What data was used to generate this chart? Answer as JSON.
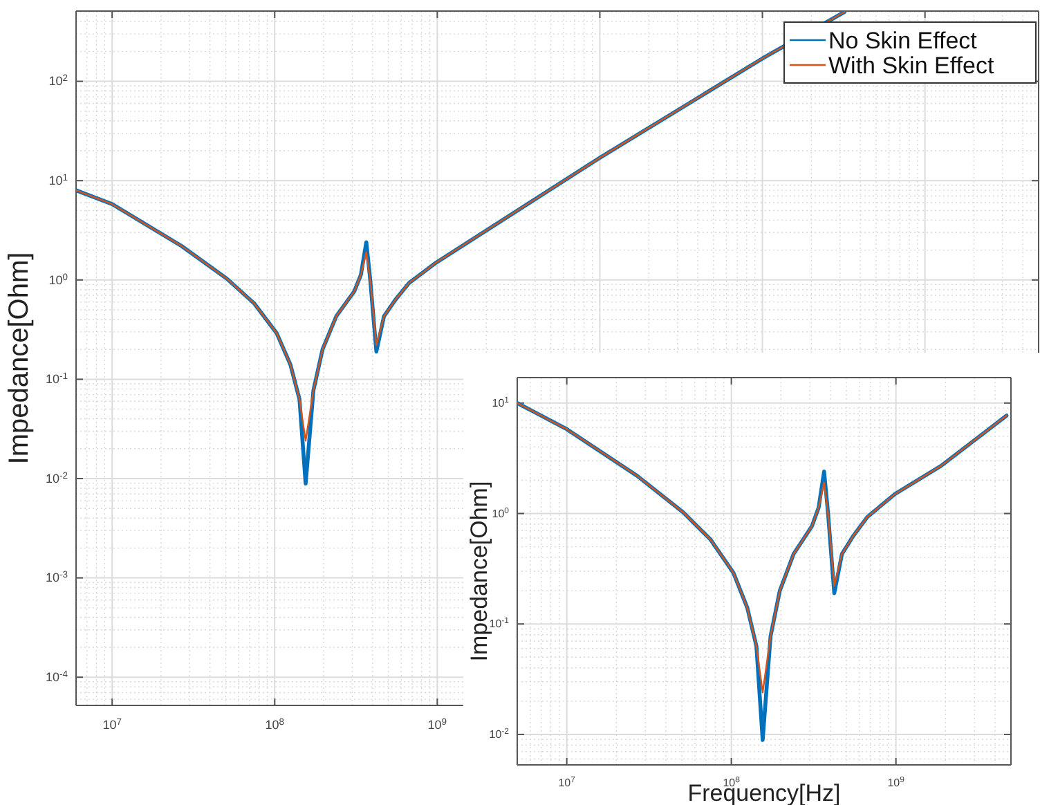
{
  "chart_data": [
    {
      "type": "line",
      "ylabel": "Impedance[Ohm]",
      "log": "xy",
      "grid": true,
      "legend": "top right",
      "line_style": "solid",
      "xlim": [
        6000000,
        5000000000000
      ],
      "ylim": [
        5.2e-05,
        510
      ],
      "xticks": [
        {
          "value": 10000000,
          "label": "10$^{7}$"
        },
        {
          "value": 100000000,
          "label": "10$^{8}$"
        },
        {
          "value": 1000000000,
          "label": "10$^{9}$"
        },
        {
          "value": 10000000000,
          "label": null
        },
        {
          "value": 100000000000,
          "label": null
        },
        {
          "value": 1000000000000,
          "label": null
        }
      ],
      "yticks": [
        {
          "value": 0.0001,
          "label": "10$^{-4}$"
        },
        {
          "value": 0.001,
          "label": "10$^{-3}$"
        },
        {
          "value": 0.01,
          "label": "10$^{-2}$"
        },
        {
          "value": 0.1,
          "label": "10$^{-1}$"
        },
        {
          "value": 1,
          "label": "10$^{0}$"
        },
        {
          "value": 10,
          "label": "10$^{1}$"
        },
        {
          "value": 100,
          "label": "10$^{2}$"
        }
      ],
      "x": [
        6000000,
        10000000,
        26700000,
        50800000,
        74800000,
        103000000,
        125000000,
        142000000,
        155000000,
        173000000,
        197000000,
        239000000,
        309000000,
        339000000,
        366000000,
        387000000,
        422000000,
        470000000,
        552000000,
        670000000,
        986000000,
        10000000000,
        100000000000,
        320000000000
      ],
      "series": [
        {
          "name": "No Skin Effect",
          "color": "#0072bd",
          "values": [
            8,
            5.8,
            2.2,
            1.03,
            0.58,
            0.29,
            0.14,
            0.063,
            0.0089,
            0.077,
            0.2,
            0.43,
            0.77,
            1.13,
            2.4,
            1.0,
            0.19,
            0.43,
            0.63,
            0.93,
            1.5,
            17,
            170,
            500
          ]
        },
        {
          "name": "With Skin Effect",
          "color": "#d95319",
          "values": [
            8,
            5.8,
            2.2,
            1.03,
            0.58,
            0.29,
            0.14,
            0.063,
            0.024,
            0.077,
            0.2,
            0.43,
            0.77,
            1.13,
            1.9,
            1.0,
            0.22,
            0.43,
            0.63,
            0.93,
            1.5,
            17,
            170,
            500
          ]
        }
      ]
    },
    {
      "type": "line",
      "xlabel": "Frequency[Hz]",
      "ylabel": "Impedance[Ohm]",
      "log": "xy",
      "grid": true,
      "line_style": "solid",
      "xlim": [
        5000000,
        5000000000
      ],
      "ylim": [
        0.0053,
        17
      ],
      "xticks": [
        {
          "value": 10000000,
          "label": "10$^{7}$"
        },
        {
          "value": 100000000,
          "label": "10$^{8}$"
        },
        {
          "value": 1000000000,
          "label": "10$^{9}$"
        }
      ],
      "yticks": [
        {
          "value": 0.01,
          "label": "10$^{-2}$"
        },
        {
          "value": 0.1,
          "label": "10$^{-1}$"
        },
        {
          "value": 1,
          "label": "10$^{0}$"
        },
        {
          "value": 10,
          "label": "10$^{1}$"
        }
      ],
      "x": [
        5000000,
        10000000,
        26700000,
        50800000,
        74800000,
        103000000,
        125000000,
        142000000,
        155000000,
        173000000,
        197000000,
        239000000,
        309000000,
        339000000,
        366000000,
        387000000,
        422000000,
        470000000,
        552000000,
        670000000,
        986000000,
        1880000000,
        4700000000
      ],
      "series": [
        {
          "color": "#0072bd",
          "values": [
            10,
            5.8,
            2.2,
            1.03,
            0.58,
            0.29,
            0.14,
            0.063,
            0.0089,
            0.077,
            0.2,
            0.43,
            0.77,
            1.13,
            2.4,
            1.0,
            0.19,
            0.43,
            0.63,
            0.93,
            1.5,
            2.7,
            7.7
          ]
        },
        {
          "color": "#d95319",
          "values": [
            10,
            5.8,
            2.2,
            1.03,
            0.58,
            0.29,
            0.14,
            0.063,
            0.024,
            0.077,
            0.2,
            0.43,
            0.77,
            1.13,
            1.9,
            1.0,
            0.22,
            0.43,
            0.63,
            0.93,
            1.5,
            2.7,
            7.7
          ]
        }
      ]
    }
  ]
}
